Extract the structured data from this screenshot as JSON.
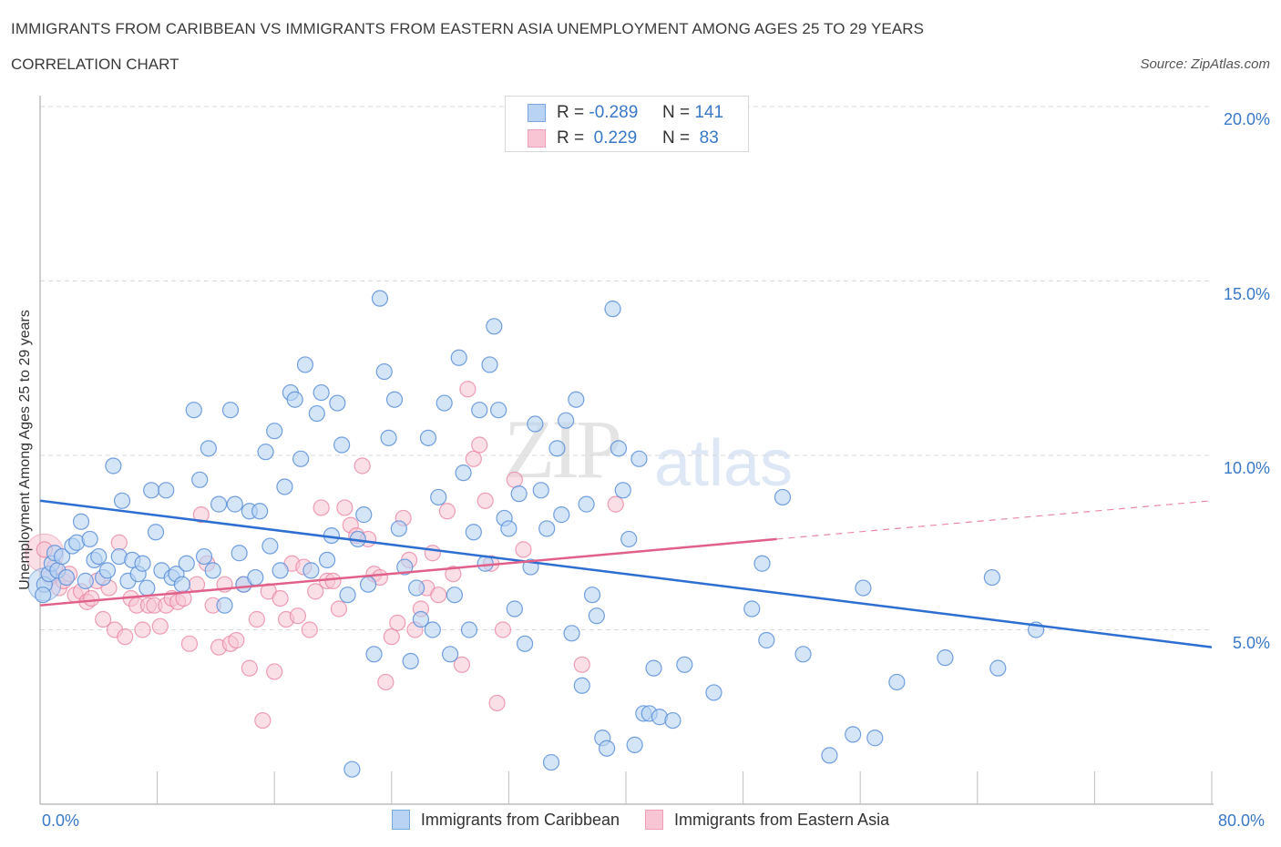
{
  "header": {
    "title": "IMMIGRANTS FROM CARIBBEAN VS IMMIGRANTS FROM EASTERN ASIA UNEMPLOYMENT AMONG AGES 25 TO 29 YEARS",
    "subtitle": "CORRELATION CHART",
    "source": "Source: ZipAtlas.com"
  },
  "watermark": {
    "zip": "ZIP",
    "atlas": "atlas"
  },
  "stats_legend": [
    {
      "r_label": "R =",
      "r_value": "-0.289",
      "n_label": "N =",
      "n_value": "141"
    },
    {
      "r_label": "R =",
      "r_value": " 0.229",
      "n_label": "N =",
      "n_value": " 83"
    }
  ],
  "colors": {
    "caribbean_fill": "#b8d3f3",
    "caribbean_stroke": "#5a8fd8",
    "caribbean_line": "#2d6fd1",
    "asia_fill": "#f8c5d4",
    "asia_stroke": "#e8809f",
    "asia_line": "#e0608a",
    "tick_label": "#3a78c8"
  },
  "chart_data": {
    "type": "scatter",
    "title": "IMMIGRANTS FROM CARIBBEAN VS IMMIGRANTS FROM EASTERN ASIA UNEMPLOYMENT AMONG AGES 25 TO 29 YEARS",
    "subtitle": "CORRELATION CHART",
    "xlabel": "",
    "ylabel": "Unemployment Among Ages 25 to 29 years",
    "xlim": [
      0,
      80
    ],
    "ylim": [
      0,
      20
    ],
    "x_tick_labels": [
      "0.0%",
      "80.0%"
    ],
    "y_ticks": [
      5,
      10,
      15,
      20
    ],
    "y_tick_labels": [
      "5.0%",
      "10.0%",
      "15.0%",
      "20.0%"
    ],
    "grid": true,
    "legend_position": "bottom",
    "series": [
      {
        "name": "Immigrants from Caribbean",
        "R": -0.289,
        "N": 141,
        "trend": {
          "x": [
            0,
            80
          ],
          "y": [
            8.7,
            4.5
          ]
        },
        "points": [
          [
            0.3,
            6.3
          ],
          [
            0.6,
            6.6
          ],
          [
            0.8,
            6.9
          ],
          [
            1.0,
            7.2
          ],
          [
            1.2,
            6.7
          ],
          [
            1.5,
            7.1
          ],
          [
            1.8,
            6.5
          ],
          [
            2.2,
            7.4
          ],
          [
            2.5,
            7.5
          ],
          [
            2.8,
            8.1
          ],
          [
            3.1,
            6.4
          ],
          [
            3.4,
            7.6
          ],
          [
            3.7,
            7.0
          ],
          [
            4.0,
            7.1
          ],
          [
            4.3,
            6.5
          ],
          [
            4.6,
            6.7
          ],
          [
            5.0,
            9.7
          ],
          [
            5.4,
            7.1
          ],
          [
            5.6,
            8.7
          ],
          [
            6.0,
            6.4
          ],
          [
            6.3,
            7.0
          ],
          [
            6.7,
            6.6
          ],
          [
            7.0,
            6.9
          ],
          [
            7.3,
            6.2
          ],
          [
            7.6,
            9.0
          ],
          [
            7.9,
            7.8
          ],
          [
            8.3,
            6.7
          ],
          [
            8.6,
            9.0
          ],
          [
            9.0,
            6.5
          ],
          [
            9.3,
            6.6
          ],
          [
            9.7,
            6.3
          ],
          [
            10.0,
            6.9
          ],
          [
            10.5,
            11.3
          ],
          [
            10.9,
            9.3
          ],
          [
            11.2,
            7.1
          ],
          [
            11.5,
            10.2
          ],
          [
            11.8,
            6.7
          ],
          [
            12.2,
            8.6
          ],
          [
            12.6,
            5.7
          ],
          [
            13.0,
            11.3
          ],
          [
            13.3,
            8.6
          ],
          [
            13.6,
            7.2
          ],
          [
            13.9,
            6.3
          ],
          [
            14.3,
            8.4
          ],
          [
            14.7,
            6.5
          ],
          [
            15.0,
            8.4
          ],
          [
            15.4,
            10.1
          ],
          [
            15.7,
            7.4
          ],
          [
            16.0,
            10.7
          ],
          [
            16.4,
            6.7
          ],
          [
            16.7,
            9.1
          ],
          [
            17.1,
            11.8
          ],
          [
            17.4,
            11.6
          ],
          [
            17.8,
            9.9
          ],
          [
            18.1,
            12.6
          ],
          [
            18.5,
            6.7
          ],
          [
            18.9,
            11.2
          ],
          [
            19.2,
            11.8
          ],
          [
            19.6,
            7.0
          ],
          [
            19.9,
            7.7
          ],
          [
            20.3,
            11.5
          ],
          [
            20.6,
            10.3
          ],
          [
            21.0,
            6.0
          ],
          [
            21.3,
            1.0
          ],
          [
            21.7,
            7.6
          ],
          [
            22.1,
            8.3
          ],
          [
            22.4,
            6.3
          ],
          [
            22.8,
            4.3
          ],
          [
            23.2,
            14.5
          ],
          [
            23.5,
            12.4
          ],
          [
            23.8,
            10.5
          ],
          [
            24.2,
            11.6
          ],
          [
            24.5,
            7.9
          ],
          [
            24.9,
            6.8
          ],
          [
            25.3,
            4.1
          ],
          [
            25.7,
            6.2
          ],
          [
            26.0,
            5.3
          ],
          [
            26.5,
            10.5
          ],
          [
            26.8,
            5.0
          ],
          [
            27.2,
            8.8
          ],
          [
            27.6,
            11.5
          ],
          [
            28.0,
            4.3
          ],
          [
            28.3,
            6.0
          ],
          [
            28.6,
            12.8
          ],
          [
            28.9,
            9.5
          ],
          [
            29.3,
            5.0
          ],
          [
            29.6,
            7.8
          ],
          [
            30.0,
            11.3
          ],
          [
            30.4,
            6.9
          ],
          [
            30.7,
            12.6
          ],
          [
            31.0,
            13.7
          ],
          [
            31.3,
            11.3
          ],
          [
            31.7,
            8.2
          ],
          [
            32.0,
            7.9
          ],
          [
            32.4,
            5.6
          ],
          [
            32.7,
            8.9
          ],
          [
            33.1,
            4.6
          ],
          [
            33.5,
            6.8
          ],
          [
            33.8,
            10.9
          ],
          [
            34.2,
            9.0
          ],
          [
            34.6,
            7.9
          ],
          [
            34.9,
            1.2
          ],
          [
            35.3,
            10.2
          ],
          [
            35.6,
            8.3
          ],
          [
            35.9,
            11.0
          ],
          [
            36.3,
            4.9
          ],
          [
            36.6,
            11.6
          ],
          [
            37.0,
            3.4
          ],
          [
            37.3,
            8.6
          ],
          [
            37.7,
            6.0
          ],
          [
            38.0,
            5.4
          ],
          [
            38.4,
            1.9
          ],
          [
            38.7,
            1.6
          ],
          [
            39.1,
            14.2
          ],
          [
            39.5,
            10.2
          ],
          [
            39.8,
            9.0
          ],
          [
            40.2,
            7.6
          ],
          [
            40.6,
            1.7
          ],
          [
            40.9,
            9.9
          ],
          [
            41.2,
            2.6
          ],
          [
            41.6,
            2.6
          ],
          [
            41.9,
            3.9
          ],
          [
            42.3,
            2.5
          ],
          [
            43.2,
            2.4
          ],
          [
            44.0,
            4.0
          ],
          [
            46.0,
            3.2
          ],
          [
            48.6,
            5.6
          ],
          [
            49.3,
            6.9
          ],
          [
            49.6,
            4.7
          ],
          [
            50.7,
            8.8
          ],
          [
            52.1,
            4.3
          ],
          [
            53.9,
            1.4
          ],
          [
            55.5,
            2.0
          ],
          [
            56.2,
            6.2
          ],
          [
            57.0,
            1.9
          ],
          [
            58.5,
            3.5
          ],
          [
            61.8,
            4.2
          ],
          [
            65.0,
            6.5
          ],
          [
            65.4,
            3.9
          ],
          [
            68.0,
            5.0
          ],
          [
            0.2,
            6.0
          ]
        ]
      },
      {
        "name": "Immigrants from Eastern Asia",
        "R": 0.229,
        "N": 83,
        "trend": {
          "x": [
            0,
            50.3
          ],
          "y": [
            5.7,
            7.6
          ]
        },
        "trend_extension": {
          "x": [
            50.3,
            80
          ],
          "y": [
            7.6,
            8.7
          ]
        },
        "points": [
          [
            0.3,
            7.3
          ],
          [
            0.7,
            6.5
          ],
          [
            1.0,
            6.8
          ],
          [
            1.3,
            6.2
          ],
          [
            1.6,
            6.4
          ],
          [
            2.0,
            6.6
          ],
          [
            2.4,
            6.0
          ],
          [
            2.8,
            6.1
          ],
          [
            3.2,
            5.8
          ],
          [
            3.5,
            5.9
          ],
          [
            3.9,
            6.4
          ],
          [
            4.3,
            5.3
          ],
          [
            4.7,
            6.2
          ],
          [
            5.1,
            5.0
          ],
          [
            5.4,
            7.5
          ],
          [
            5.8,
            4.8
          ],
          [
            6.2,
            5.9
          ],
          [
            6.6,
            5.7
          ],
          [
            7.0,
            5.0
          ],
          [
            7.4,
            5.7
          ],
          [
            7.8,
            5.7
          ],
          [
            8.2,
            5.1
          ],
          [
            8.6,
            5.7
          ],
          [
            9.0,
            5.9
          ],
          [
            9.4,
            5.8
          ],
          [
            9.8,
            5.9
          ],
          [
            10.2,
            4.6
          ],
          [
            10.7,
            6.3
          ],
          [
            11.0,
            8.3
          ],
          [
            11.4,
            6.9
          ],
          [
            11.8,
            5.7
          ],
          [
            12.2,
            4.5
          ],
          [
            12.6,
            6.3
          ],
          [
            13.0,
            4.6
          ],
          [
            13.4,
            4.7
          ],
          [
            13.9,
            6.3
          ],
          [
            14.3,
            3.9
          ],
          [
            14.8,
            5.3
          ],
          [
            15.2,
            2.4
          ],
          [
            15.6,
            6.1
          ],
          [
            16.0,
            3.8
          ],
          [
            16.4,
            5.9
          ],
          [
            16.8,
            5.3
          ],
          [
            17.2,
            6.9
          ],
          [
            17.6,
            5.4
          ],
          [
            18.0,
            6.8
          ],
          [
            18.4,
            5.0
          ],
          [
            18.8,
            6.1
          ],
          [
            19.2,
            8.5
          ],
          [
            19.6,
            6.4
          ],
          [
            20.0,
            6.4
          ],
          [
            20.4,
            5.6
          ],
          [
            20.8,
            8.5
          ],
          [
            21.2,
            8.0
          ],
          [
            21.6,
            7.7
          ],
          [
            22.0,
            9.7
          ],
          [
            22.4,
            7.6
          ],
          [
            22.8,
            6.6
          ],
          [
            23.2,
            6.5
          ],
          [
            23.6,
            3.5
          ],
          [
            24.0,
            4.8
          ],
          [
            24.4,
            5.2
          ],
          [
            24.8,
            8.2
          ],
          [
            25.2,
            7.0
          ],
          [
            25.6,
            5.0
          ],
          [
            26.0,
            5.6
          ],
          [
            26.4,
            6.2
          ],
          [
            26.8,
            7.2
          ],
          [
            27.2,
            6.0
          ],
          [
            27.8,
            8.4
          ],
          [
            28.2,
            6.6
          ],
          [
            28.8,
            4.0
          ],
          [
            29.2,
            11.9
          ],
          [
            29.6,
            9.9
          ],
          [
            30.0,
            10.3
          ],
          [
            30.4,
            8.7
          ],
          [
            30.8,
            6.9
          ],
          [
            31.2,
            2.9
          ],
          [
            31.6,
            5.0
          ],
          [
            32.4,
            9.3
          ],
          [
            33.0,
            7.3
          ],
          [
            37.0,
            4.0
          ],
          [
            39.3,
            8.6
          ]
        ]
      }
    ]
  },
  "bottom_legend": [
    {
      "label": "Immigrants from Caribbean"
    },
    {
      "label": "Immigrants from Eastern Asia"
    }
  ]
}
